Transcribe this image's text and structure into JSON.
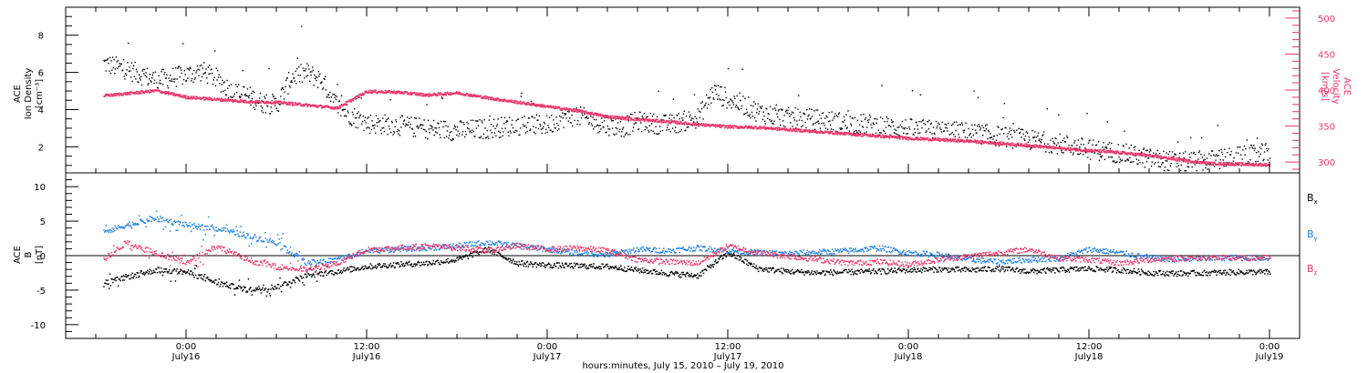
{
  "chart_data": [
    {
      "type": "scatter",
      "panel": "top",
      "ylabel": [
        "ACE",
        "Ion Density",
        "[cm⁻³]"
      ],
      "y2label": [
        "ACE",
        "Velocity",
        "[km/s]"
      ],
      "yticks": [
        2,
        4,
        6,
        8
      ],
      "y2ticks": [
        300,
        350,
        400,
        450,
        500
      ],
      "ylim": [
        0.6,
        9.5
      ],
      "y2lim": [
        285,
        515
      ],
      "series": [
        {
          "key": "density",
          "axis": "left",
          "color": "#000000",
          "x": [
            -5.5,
            -4,
            -2,
            0,
            1,
            2,
            3,
            4,
            5,
            6,
            7,
            8,
            9,
            10,
            11,
            12,
            14,
            16,
            18,
            20,
            22,
            24,
            25,
            26,
            27,
            28,
            29,
            30,
            31,
            32,
            33,
            34,
            35,
            36,
            37,
            38,
            39,
            40,
            42,
            44,
            46,
            48,
            50,
            52,
            54,
            56,
            58,
            60,
            62,
            64,
            66,
            68,
            70,
            72
          ],
          "y": [
            6.5,
            6.2,
            5.6,
            5.9,
            6.1,
            5.7,
            5.0,
            4.8,
            4.4,
            4.3,
            5.8,
            6.0,
            5.6,
            4.2,
            3.7,
            3.3,
            3.2,
            3.0,
            2.9,
            3.0,
            3.2,
            3.2,
            3.6,
            3.7,
            3.4,
            3.2,
            3.1,
            3.4,
            3.3,
            3.2,
            3.4,
            3.6,
            5.0,
            4.6,
            4.3,
            3.9,
            3.7,
            3.6,
            3.5,
            3.3,
            3.2,
            3.0,
            2.9,
            2.8,
            2.6,
            2.4,
            2.2,
            1.9,
            1.7,
            1.4,
            1.2,
            1.3,
            1.5,
            1.7
          ]
        },
        {
          "key": "velocity",
          "axis": "right",
          "color": "#e8376b",
          "x": [
            -5.5,
            -4,
            -2,
            0,
            2,
            4,
            6,
            8,
            10,
            12,
            14,
            16,
            18,
            20,
            22,
            24,
            26,
            28,
            30,
            32,
            34,
            36,
            38,
            40,
            42,
            44,
            46,
            48,
            50,
            52,
            54,
            56,
            58,
            60,
            62,
            64,
            66,
            68,
            70,
            72
          ],
          "y": [
            393,
            396,
            400,
            391,
            388,
            385,
            384,
            380,
            376,
            399,
            398,
            394,
            397,
            390,
            384,
            378,
            372,
            364,
            360,
            357,
            353,
            350,
            349,
            346,
            343,
            340,
            337,
            334,
            332,
            330,
            327,
            324,
            320,
            317,
            314,
            310,
            304,
            299,
            298,
            297
          ]
        }
      ]
    },
    {
      "type": "scatter",
      "panel": "bottom",
      "ylabel": [
        "ACE",
        "B",
        "[nT]"
      ],
      "yticks": [
        -10,
        -5,
        0,
        5,
        10
      ],
      "ylim": [
        -12,
        12
      ],
      "zero_line": true,
      "series": [
        {
          "name": "Bx",
          "color": "#000000",
          "x": [
            -5.5,
            -4,
            -2,
            0,
            2,
            4,
            6,
            8,
            10,
            12,
            14,
            16,
            18,
            20,
            22,
            24,
            26,
            28,
            30,
            32,
            34,
            36,
            38,
            40,
            42,
            44,
            46,
            48,
            50,
            52,
            54,
            56,
            58,
            60,
            62,
            64,
            66,
            68,
            70,
            72
          ],
          "y": [
            -4.0,
            -3.0,
            -2.0,
            -2.3,
            -3.8,
            -4.9,
            -4.4,
            -2.8,
            -2.2,
            -1.5,
            -1.2,
            -1.0,
            -0.5,
            1.0,
            -1.0,
            -1.3,
            -1.4,
            -1.5,
            -2.0,
            -2.5,
            -2.8,
            0.5,
            -1.8,
            -2.2,
            -2.4,
            -2.3,
            -2.2,
            -2.0,
            -1.9,
            -2.0,
            -1.8,
            -2.2,
            -2.0,
            -1.8,
            -2.0,
            -2.4,
            -2.5,
            -2.4,
            -2.3,
            -2.3
          ]
        },
        {
          "name": "By",
          "color": "#1f7fe0",
          "x": [
            -5.5,
            -4,
            -2,
            0,
            2,
            4,
            6,
            8,
            10,
            12,
            14,
            16,
            18,
            20,
            22,
            24,
            26,
            28,
            30,
            32,
            34,
            36,
            38,
            40,
            42,
            44,
            46,
            48,
            50,
            52,
            54,
            56,
            58,
            60,
            62,
            64,
            66,
            68,
            70,
            72
          ],
          "y": [
            3.5,
            4.5,
            5.5,
            4.5,
            4.0,
            3.0,
            2.0,
            -1.0,
            -0.5,
            0.8,
            1.0,
            1.2,
            1.5,
            2.0,
            1.5,
            1.0,
            0.5,
            0.2,
            1.0,
            0.8,
            1.2,
            0.8,
            0.5,
            0.4,
            0.6,
            0.8,
            1.2,
            0.5,
            0.2,
            -0.5,
            -0.8,
            -0.5,
            -0.3,
            1.0,
            0.5,
            -0.2,
            -0.5,
            -0.3,
            -0.2,
            -0.3
          ]
        },
        {
          "name": "Bz",
          "color": "#e8376b",
          "x": [
            -5.5,
            -4,
            -2,
            0,
            2,
            4,
            6,
            8,
            10,
            12,
            14,
            16,
            18,
            20,
            22,
            24,
            26,
            28,
            30,
            32,
            34,
            36,
            38,
            40,
            42,
            44,
            46,
            48,
            50,
            52,
            54,
            56,
            58,
            60,
            62,
            64,
            66,
            68,
            70,
            72
          ],
          "y": [
            -0.5,
            2.0,
            0.5,
            -1.0,
            1.5,
            -0.5,
            -1.5,
            -2.0,
            -1.0,
            1.0,
            1.2,
            1.5,
            1.2,
            0.8,
            1.5,
            1.0,
            1.2,
            0.8,
            -0.5,
            -0.8,
            -1.0,
            1.5,
            0.5,
            0.0,
            -0.5,
            -1.0,
            -0.8,
            -1.2,
            -0.5,
            0.0,
            0.5,
            1.0,
            -0.3,
            -0.5,
            -1.0,
            -0.5,
            -0.3,
            -0.2,
            -0.3,
            -0.2
          ]
        }
      ]
    }
  ],
  "x_axis": {
    "unit_hours_from": "July 16 00:00",
    "range": [
      -8,
      74
    ],
    "ticks": [
      {
        "h": 0,
        "time": "0:00",
        "day": "July16"
      },
      {
        "h": 12,
        "time": "12:00",
        "day": "July16"
      },
      {
        "h": 24,
        "time": "0:00",
        "day": "July17"
      },
      {
        "h": 36,
        "time": "12:00",
        "day": "July17"
      },
      {
        "h": 48,
        "time": "0:00",
        "day": "July18"
      },
      {
        "h": 60,
        "time": "12:00",
        "day": "July18"
      },
      {
        "h": 72,
        "time": "0:00",
        "day": "July19"
      }
    ],
    "label": "hours:minutes, July 15, 2010 – July 19, 2010"
  },
  "legend": {
    "bx": "B",
    "bx_sub": "x",
    "by": "B",
    "by_sub": "y",
    "bz": "B",
    "bz_sub": "z"
  }
}
